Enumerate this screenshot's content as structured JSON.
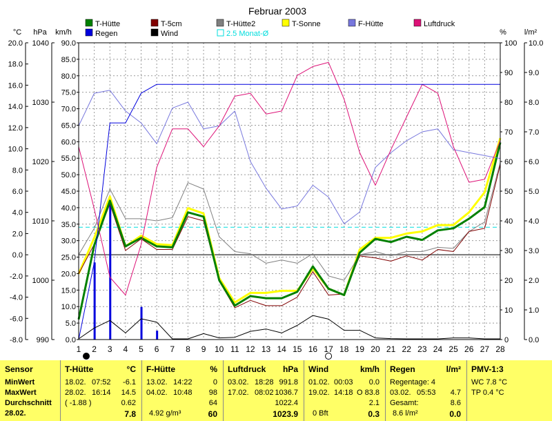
{
  "chart_data": {
    "type": "line",
    "title": "Februar 2003",
    "x": [
      1,
      2,
      3,
      4,
      5,
      6,
      7,
      8,
      9,
      10,
      11,
      12,
      13,
      14,
      15,
      16,
      17,
      18,
      19,
      20,
      21,
      22,
      23,
      24,
      25,
      26,
      27,
      28
    ],
    "xlim": [
      1,
      28
    ],
    "grid": true,
    "axes": {
      "temp_c": {
        "label": "°C",
        "min": -8,
        "max": 20,
        "ticks": [
          "20.0",
          "18.0",
          "16.0",
          "14.0",
          "12.0",
          "10.0",
          "8.0",
          "6.0",
          "4.0",
          "2.0",
          "0.0",
          "-2.0",
          "-4.0",
          "-6.0",
          "-8.0"
        ]
      },
      "pressure_hpa": {
        "label": "hPa",
        "min": 990,
        "max": 1040,
        "ticks": [
          "1040",
          "1030",
          "1020",
          "1010",
          "1000",
          "990"
        ]
      },
      "wind_kmh": {
        "label": "km/h",
        "min": 0,
        "max": 90,
        "ticks": [
          "90.0",
          "85.0",
          "80.0",
          "75.0",
          "70.0",
          "65.0",
          "60.0",
          "55.0",
          "50.0",
          "45.0",
          "40.0",
          "35.0",
          "30.0",
          "25.0",
          "20.0",
          "15.0",
          "10.0",
          "5.0",
          "0.0"
        ]
      },
      "humidity_pct": {
        "label": "%",
        "min": 0,
        "max": 100,
        "ticks": [
          "100",
          "90",
          "80",
          "70",
          "60",
          "50",
          "40",
          "30",
          "20",
          "10",
          "0"
        ]
      },
      "rain_lm2": {
        "label": "l/m²",
        "min": 0,
        "max": 10,
        "ticks": [
          "10.0",
          "9.0",
          "8.0",
          "7.0",
          "6.0",
          "5.0",
          "4.0",
          "3.0",
          "2.0",
          "1.0",
          "0.0"
        ]
      }
    },
    "legend": [
      {
        "name": "T-Hütte",
        "color": "#008000"
      },
      {
        "name": "T-5cm",
        "color": "#800000"
      },
      {
        "name": "T-Hütte2",
        "color": "#808080"
      },
      {
        "name": "T-Sonne",
        "color": "#ffff00"
      },
      {
        "name": "F-Hütte",
        "color": "#7777dd"
      },
      {
        "name": "Luftdruck",
        "color": "#dd1177"
      },
      {
        "name": "Regen",
        "color": "#0000dd"
      },
      {
        "name": "Wind",
        "color": "#000000"
      },
      {
        "name": "2.5 Monat-Ø",
        "color": "#00dddd"
      }
    ],
    "series": [
      {
        "name": "T-Sonne",
        "axis": "temp_c",
        "color": "#ffff00",
        "width": 3,
        "values": [
          -1.8,
          1.6,
          5.5,
          0.8,
          1.8,
          1.0,
          0.9,
          4.4,
          3.9,
          -2.2,
          -4.5,
          -3.6,
          -3.6,
          -3.4,
          -3.4,
          -1.3,
          -3.2,
          -3.8,
          0.5,
          1.6,
          1.6,
          2.0,
          2.2,
          2.8,
          2.8,
          4.0,
          5.9,
          11.0
        ]
      },
      {
        "name": "T-Hütte2",
        "axis": "temp_c",
        "color": "#808080",
        "width": 1,
        "values": [
          0.0,
          2.5,
          6.2,
          3.4,
          3.4,
          3.2,
          3.5,
          6.8,
          6.2,
          1.7,
          0.3,
          0.1,
          -0.8,
          -0.5,
          -0.8,
          0.1,
          -2.0,
          -2.4,
          0.0,
          0.3,
          -0.1,
          0.3,
          0.3,
          0.7,
          0.6,
          2.2,
          3.1,
          8.7
        ]
      },
      {
        "name": "T-5cm",
        "axis": "temp_c",
        "color": "#800000",
        "width": 1,
        "values": [
          -1.8,
          1.0,
          4.8,
          0.4,
          1.5,
          0.5,
          0.5,
          3.6,
          3.2,
          -2.5,
          -5.0,
          -4.3,
          -4.8,
          -4.8,
          -4.0,
          -1.6,
          -3.8,
          -3.7,
          -0.1,
          -0.3,
          -0.6,
          -0.1,
          -0.5,
          0.5,
          0.3,
          2.2,
          2.5,
          8.5
        ]
      },
      {
        "name": "T-Hütte",
        "axis": "temp_c",
        "color": "#008000",
        "width": 3,
        "values": [
          -6.1,
          0.9,
          5.1,
          0.8,
          1.6,
          0.8,
          0.7,
          4.0,
          3.6,
          -2.4,
          -4.8,
          -3.9,
          -4.1,
          -4.1,
          -3.5,
          -1.1,
          -3.2,
          -3.8,
          0.2,
          1.5,
          1.2,
          1.7,
          1.4,
          2.3,
          2.5,
          3.4,
          4.5,
          10.6
        ]
      },
      {
        "name": "F-Hütte",
        "axis": "humidity_pct",
        "color": "#7777dd",
        "width": 1,
        "values": [
          72,
          83,
          84,
          77,
          73,
          66,
          78,
          80,
          71,
          72,
          77,
          60,
          51,
          44,
          45,
          52,
          48,
          39,
          43,
          58,
          63,
          67,
          70,
          71,
          64,
          63,
          62,
          61
        ]
      },
      {
        "name": "Luftdruck",
        "axis": "pressure_hpa",
        "color": "#dd1177",
        "width": 1,
        "values": [
          1022.5,
          1012.0,
          1000.5,
          997.5,
          1006.0,
          1019.0,
          1025.5,
          1025.5,
          1022.5,
          1026.0,
          1031.0,
          1031.5,
          1028.0,
          1028.5,
          1034.5,
          1036.0,
          1036.7,
          1030.5,
          1021.5,
          1016.0,
          1022.0,
          1027.5,
          1033.0,
          1031.5,
          1022.5,
          1016.5,
          1017.0,
          1023.5
        ]
      },
      {
        "name": "Regen",
        "axis": "rain_lm2",
        "color": "#0000dd",
        "width": 1,
        "values": [
          0.0,
          2.6,
          7.3,
          7.3,
          8.3,
          8.6,
          8.6,
          8.6,
          8.6,
          8.6,
          8.6,
          8.6,
          8.6,
          8.6,
          8.6,
          8.6,
          8.6,
          8.6,
          8.6,
          8.6,
          8.6,
          8.6,
          8.6,
          8.6,
          8.6,
          8.6,
          8.6,
          8.6
        ]
      },
      {
        "name": "Wind",
        "axis": "wind_kmh",
        "color": "#000000",
        "width": 1,
        "values": [
          0.2,
          3.5,
          5.8,
          2.0,
          6.3,
          5.3,
          0.2,
          0.2,
          1.8,
          0.5,
          0.7,
          2.5,
          3.2,
          2.0,
          4.3,
          7.3,
          6.2,
          2.8,
          2.8,
          0.5,
          0.3,
          0.2,
          0.2,
          0.2,
          0.5,
          0.5,
          0.2,
          0.2
        ]
      }
    ],
    "daily_rain": {
      "name": "Regen",
      "axis": "rain_lm2",
      "color": "#0000dd",
      "x": [
        2,
        3,
        5,
        6
      ],
      "values": [
        2.6,
        4.7,
        1.1,
        0.3
      ]
    },
    "reference_line": {
      "name": "2.5 Monat-Ø",
      "axis": "temp_c",
      "color": "#00dddd",
      "value": 2.6
    },
    "zero_line": {
      "axis": "temp_c",
      "value": 0.0,
      "color": "#777777"
    },
    "moon_phases": [
      {
        "x": 1,
        "phase": "new"
      },
      {
        "x": 17,
        "phase": "full"
      }
    ]
  },
  "summary": {
    "sensor": {
      "title": "Sensor",
      "rows": [
        "MinWert",
        "MaxWert",
        "Durchschnitt",
        "28.02."
      ]
    },
    "t_huette": {
      "title": "T-Hütte",
      "unit": "°C",
      "rows": [
        [
          "18.02.",
          "07:52",
          "-6.1"
        ],
        [
          "28.02.",
          "16:14",
          "14.5"
        ],
        [
          "( -1.88 )",
          "",
          "0.62"
        ],
        [
          "",
          "",
          "7.8"
        ]
      ]
    },
    "f_huette": {
      "title": "F-Hütte",
      "unit": "%",
      "rows": [
        [
          "13.02.",
          "14:22",
          "0"
        ],
        [
          "04.02.",
          "10:48",
          "98"
        ],
        [
          "",
          "",
          "64"
        ],
        [
          "4.92 g/m³",
          "",
          "60"
        ]
      ]
    },
    "luftdruck": {
      "title": "Luftdruck",
      "unit": "hPa",
      "rows": [
        [
          "03.02.",
          "18:28",
          "991.8"
        ],
        [
          "17.02.",
          "08:02",
          "1036.7"
        ],
        [
          "",
          "",
          "1022.4"
        ],
        [
          "",
          "",
          "1023.9"
        ]
      ]
    },
    "wind": {
      "title": "Wind",
      "unit": "km/h",
      "rows": [
        [
          "01.02.",
          "00:03",
          "0.0"
        ],
        [
          "19.02.",
          "14:18",
          "O 83.8"
        ],
        [
          "",
          "",
          "2.1"
        ],
        [
          "0 Bft",
          "",
          "0.3"
        ]
      ]
    },
    "regen": {
      "title": "Regen",
      "unit": "l/m²",
      "rows": [
        [
          "Regentage: 4",
          "",
          ""
        ],
        [
          "03.02.",
          "05:53",
          "4.7"
        ],
        [
          "Gesamt:",
          "",
          "8.6"
        ],
        [
          "8.6 l/m²",
          "",
          "0.0"
        ]
      ]
    },
    "pmv": {
      "title": "PMV-1:3",
      "rows": [
        "WC 7.8 °C",
        "TP 0.4 °C"
      ]
    }
  }
}
